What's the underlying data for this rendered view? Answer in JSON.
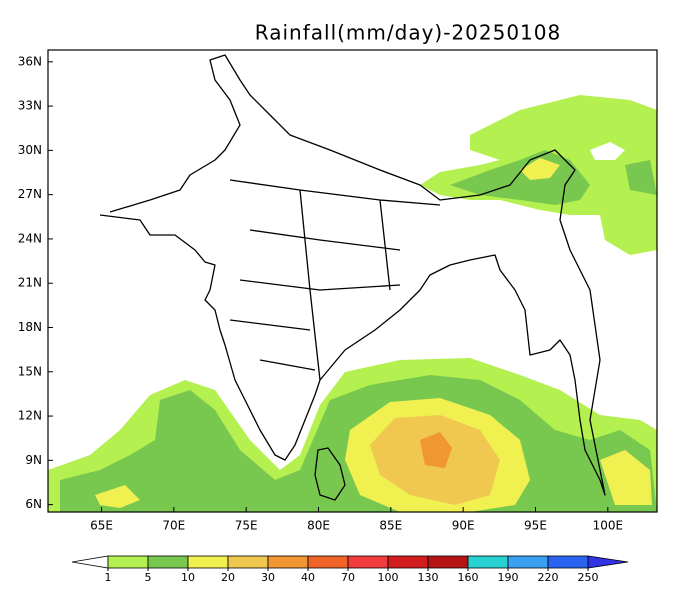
{
  "chart_data": {
    "type": "map",
    "title": "Rainfall(mm/day)-20250108",
    "xlim": [
      61.3,
      103.4
    ],
    "ylim": [
      5.5,
      36.8
    ],
    "xticks": [
      {
        "value": 65,
        "label": "65E"
      },
      {
        "value": 70,
        "label": "70E"
      },
      {
        "value": 75,
        "label": "75E"
      },
      {
        "value": 80,
        "label": "80E"
      },
      {
        "value": 85,
        "label": "85E"
      },
      {
        "value": 90,
        "label": "90E"
      },
      {
        "value": 95,
        "label": "95E"
      },
      {
        "value": 100,
        "label": "100E"
      }
    ],
    "yticks": [
      {
        "value": 6,
        "label": "6N"
      },
      {
        "value": 9,
        "label": "9N"
      },
      {
        "value": 12,
        "label": "12N"
      },
      {
        "value": 15,
        "label": "15N"
      },
      {
        "value": 18,
        "label": "18N"
      },
      {
        "value": 21,
        "label": "21N"
      },
      {
        "value": 24,
        "label": "24N"
      },
      {
        "value": 27,
        "label": "27N"
      },
      {
        "value": 30,
        "label": "30N"
      },
      {
        "value": 33,
        "label": "33N"
      },
      {
        "value": 36,
        "label": "36N"
      }
    ],
    "colorbar": {
      "levels": [
        1,
        5,
        10,
        20,
        30,
        40,
        70,
        100,
        130,
        160,
        190,
        220,
        250
      ],
      "colors": [
        "#ffffff",
        "#b4f050",
        "#78c850",
        "#f0f050",
        "#f0c850",
        "#f09632",
        "#f06428",
        "#f03c3c",
        "#d21e1e",
        "#b41414",
        "#28d2d2",
        "#3ca0f0",
        "#2864f0",
        "#3232e6"
      ]
    }
  }
}
